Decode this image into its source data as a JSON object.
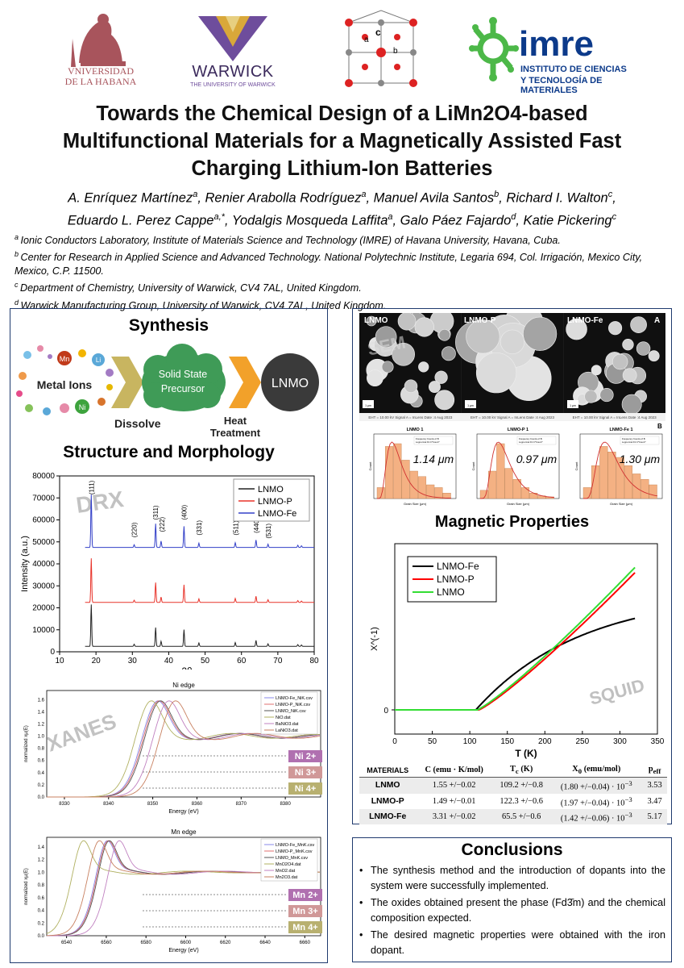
{
  "logos": {
    "havana": [
      "VNIVERSIDAD",
      "DE LA HABANA"
    ],
    "warwick": {
      "name": "WARWICK",
      "sub": "THE UNIVERSITY OF WARWICK"
    },
    "imre": {
      "name": "imre",
      "sub1": "INSTITUTO DE CIENCIAS",
      "sub2": "Y TECNOLOGÍA DE MATERIALES"
    },
    "crystal_labels": [
      "a",
      "c",
      "b"
    ]
  },
  "title": "Towards the Chemical Design of a LiMn2O4-based\nMultifunctional Materials for a Magnetically Assisted Fast\nCharging Lithium-Ion Batteries",
  "authors": [
    [
      {
        "n": "A. Enríquez Martínez",
        "s": "a"
      },
      {
        "n": ", Renier Arabolla Rodríguez",
        "s": "a"
      },
      {
        "n": ", Manuel Avila Santos",
        "s": "b"
      },
      {
        "n": ", Richard I. Walton",
        "s": "c"
      },
      {
        "n": ",",
        "s": ""
      }
    ],
    [
      {
        "n": "Eduardo L. Perez Cappe",
        "s": "a,*"
      },
      {
        "n": ", Yodalgis Mosqueda Laffita",
        "s": "a"
      },
      {
        "n": ", Galo Páez Fajardo",
        "s": "d"
      },
      {
        "n": ", Katie Pickering",
        "s": "c"
      }
    ]
  ],
  "affiliations": [
    {
      "s": "a",
      "t": "Ionic Conductors Laboratory, Institute of Materials Science and Technology (IMRE) of Havana University, Havana, Cuba."
    },
    {
      "s": "b",
      "t": "Center for Research in Applied Science and Advanced Technology. National Polytechnic Institute, Legaria 694, Col. Irrigación, Mexico City, Mexico, C.P. 11500."
    },
    {
      "s": "c",
      "t": "Department of Chemistry, University of Warwick, CV4 7AL, United Kingdom."
    },
    {
      "s": "d",
      "t": "Warwick Manufacturing Group, University of Warwick, CV4 7AL, United Kingdom."
    }
  ],
  "synthesis": {
    "heading": "Synthesis",
    "metal_ions": "Metal Ions",
    "ions": [
      "Mn",
      "Li",
      "Ni"
    ],
    "dissolve": "Dissolve",
    "precursor": "Solid State\nPrecursor",
    "heat": "Heat\nTreatment",
    "product": "LNMO"
  },
  "structure_heading": "Structure and Morphology",
  "drx": {
    "watermark": "DRX",
    "xlabel": "2θ",
    "ylabel": "Intensity (a.u.)",
    "legend": [
      "LNMO",
      "LNMO-P",
      "LNMO-Fe"
    ],
    "colors": [
      "#222222",
      "#e8332a",
      "#3340c8"
    ],
    "yticks": [
      "0",
      "10000",
      "20000",
      "30000",
      "40000",
      "50000",
      "60000",
      "70000",
      "80000"
    ],
    "xticks": [
      "10",
      "20",
      "30",
      "40",
      "50",
      "60",
      "70",
      "80"
    ],
    "peaks": [
      "(111)",
      "(220)",
      "(311)",
      "(222)",
      "(400)",
      "(331)",
      "(511)",
      "(440)",
      "(531)"
    ]
  },
  "xanes_ni": {
    "watermark": "XANES",
    "title": "Ni edge",
    "xlabel": "Energy (eV)",
    "ylabel": "normalized xμ(E)",
    "xticks": [
      "8330",
      "8340",
      "8350",
      "8360",
      "8370",
      "8380"
    ],
    "yticks": [
      "0.0",
      "0.2",
      "0.4",
      "0.6",
      "0.8",
      "1.0",
      "1.2",
      "1.4",
      "1.6"
    ],
    "legend": [
      "LNMO-Fe_NiK.csv",
      "LNMO-P_NiK.csv",
      "LNMO_NiK.csv",
      "NiO.dat",
      "BaNiO3.dat",
      "LaNiO3.dat"
    ],
    "oxidation": [
      "Ni 2+",
      "Ni 3+",
      "Ni 4+"
    ]
  },
  "xanes_mn": {
    "title": "Mn edge",
    "xlabel": "Energy (eV)",
    "ylabel": "normalized xμ(E)",
    "xticks": [
      "6540",
      "6560",
      "6580",
      "6600",
      "6620",
      "6640",
      "6660"
    ],
    "yticks": [
      "0.0",
      "0.2",
      "0.4",
      "0.6",
      "0.8",
      "1.0",
      "1.2",
      "1.4"
    ],
    "legend": [
      "LNMO-Fe_MnK.csv",
      "LNMO-P_MnK.csv",
      "LNMO_MnK.csv",
      "MnO2O4.dat",
      "MnO2.dat",
      "Mn2O3.dat"
    ],
    "oxidation": [
      "Mn 2+",
      "Mn 3+",
      "Mn 4+"
    ]
  },
  "sem": {
    "labels": [
      "LNMO",
      "LNMO-P",
      "LNMO-Fe"
    ],
    "watermark": "SEM",
    "panel_a": "A",
    "panel_b": "B",
    "scale": "1 μm",
    "footer": "EHT = 10.00 kV   Signal A = InLens   Date :4 Aug 2023"
  },
  "hist": {
    "titles": [
      "LNMO 1",
      "LNMO-P 1",
      "LNMO-Fe 1"
    ],
    "sizes": [
      "1.14 μm",
      "0.97 μm",
      "1.30 μm"
    ],
    "xlabel": "Grain Size (μm)",
    "ylabel": "Count",
    "legend": [
      "Frequency Counts of B",
      "Lognormal Fit C*Count*"
    ]
  },
  "magnetic": {
    "heading": "Magnetic Properties",
    "watermark": "SQUID",
    "xlabel": "T (K)",
    "ylabel": "X^(-1)",
    "legend": [
      "LNMO-Fe",
      "LNMO-P",
      "LNMO"
    ],
    "colors": [
      "#000000",
      "#ff0000",
      "#33dd33"
    ],
    "xticks": [
      "0",
      "50",
      "100",
      "150",
      "200",
      "250",
      "300",
      "350"
    ]
  },
  "table": {
    "headers": [
      "MATERIALS",
      "C (emu · K/mol)",
      "T<sub>c</sub> (K)",
      "X<sub>0</sub> (emu/mol)",
      "p<sub>eff</sub>"
    ],
    "rows": [
      [
        "LNMO",
        "1.55 +/−0.02",
        "109.2 +/−0.8",
        "(1.80 +/−0.04) · 10<sup>−3</sup>",
        "3.53"
      ],
      [
        "LNMO-P",
        "1.49 +/−0.01",
        "122.3 +/−0.6",
        "(1.97 +/−0.04) · 10<sup>−3</sup>",
        "3.47"
      ],
      [
        "LNMO-Fe",
        "3.31 +/−0.02",
        "65.5 +/−0.6",
        "(1.42 +/−0.06) · 10<sup>−3</sup>",
        "5.17"
      ]
    ]
  },
  "conclusions": {
    "heading": "Conclusions",
    "items": [
      "The synthesis method and the introduction of dopants into the system were successfully implemented.",
      "The oxides obtained present the phase (Fd3̄m) and the chemical composition expected.",
      "The desired magnetic properties were obtained with the iron dopant."
    ]
  }
}
